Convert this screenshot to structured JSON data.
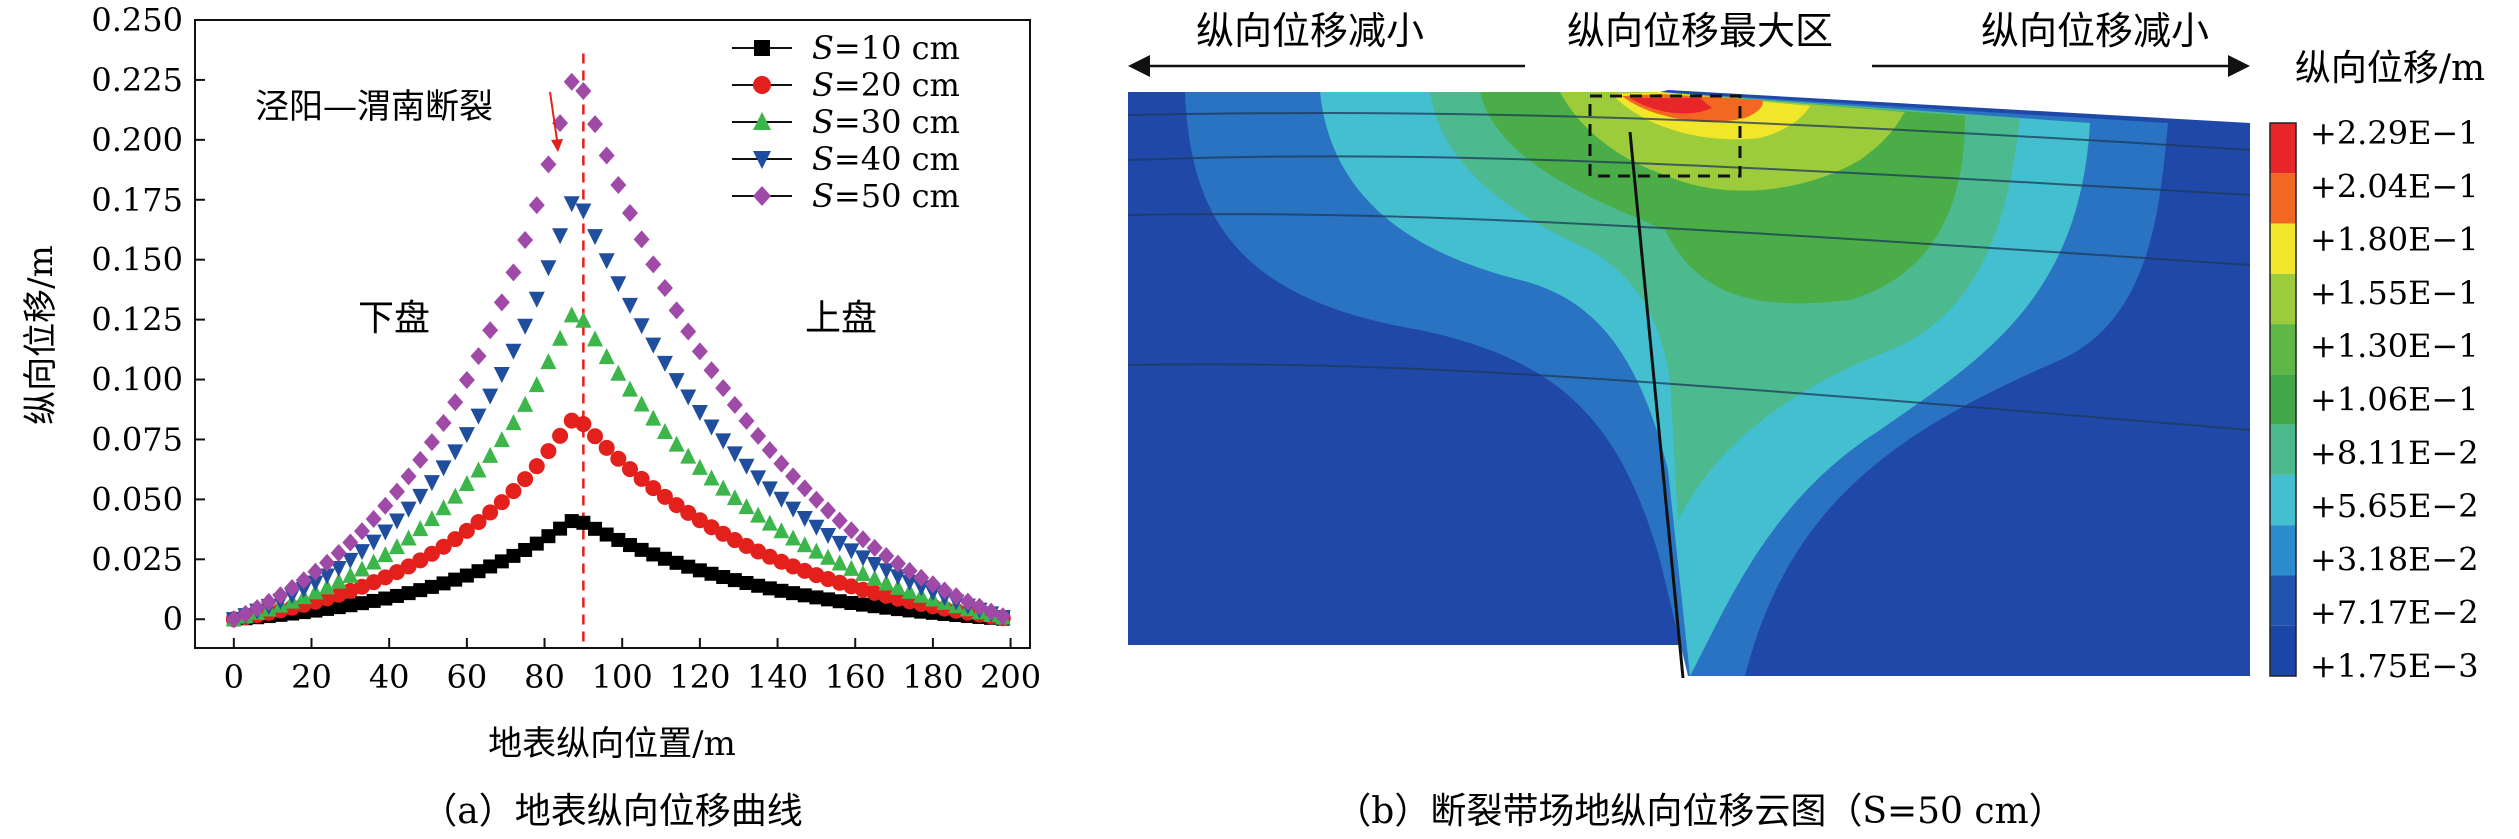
{
  "panel_a": {
    "caption": "（a）地表纵向位移曲线",
    "fault_label": "泾阳—渭南断裂",
    "footwall_label": "下盘",
    "hanging_label": "上盘"
  },
  "panel_b": {
    "caption": "（b）断裂带场地纵向位移云图（S=50 cm）",
    "left_label": "纵向位移减小",
    "center_label": "纵向位移最大区",
    "right_label": "纵向位移减小",
    "colorbar_title": "纵向位移/m",
    "colorbar_ticks": [
      "+2.29E−1",
      "+2.04E−1",
      "+1.80E−1",
      "+1.55E−1",
      "+1.30E−1",
      "+1.06E−1",
      "+8.11E−2",
      "+5.65E−2",
      "+3.18E−2",
      "+7.17E−2",
      "+1.75E−3"
    ],
    "colorbar_colors": [
      "#e8262a",
      "#f26722",
      "#f2e62a",
      "#9ccc3c",
      "#5fb845",
      "#42a84a",
      "#4cb98c",
      "#43bfcf",
      "#2a8ccc",
      "#2153b1",
      "#1b45a6"
    ]
  },
  "chart_data": {
    "type": "scatter",
    "xlabel": "地表纵向位置/m",
    "ylabel": "纵向位移/m",
    "xlim": [
      -10,
      205
    ],
    "ylim": [
      -0.012,
      0.25
    ],
    "xticks": [
      0,
      20,
      40,
      60,
      80,
      100,
      120,
      140,
      160,
      180,
      200
    ],
    "yticks": [
      0,
      0.025,
      0.05,
      0.075,
      0.1,
      0.125,
      0.15,
      0.175,
      0.2,
      0.225,
      0.25
    ],
    "ytick_labels": [
      "0",
      "0.025",
      "0.050",
      "0.075",
      "0.100",
      "0.125",
      "0.150",
      "0.175",
      "0.200",
      "0.225",
      "0.250"
    ],
    "fault_x": 90,
    "legend_position": "top-right",
    "series": [
      {
        "name": "=10 cm",
        "s_value": 10,
        "color": "#000000",
        "marker": "square",
        "peak_x": 88,
        "peak": 0.042
      },
      {
        "name": "=20 cm",
        "s_value": 20,
        "color": "#e3201b",
        "marker": "circle",
        "peak_x": 88,
        "peak": 0.085
      },
      {
        "name": "=30 cm",
        "s_value": 30,
        "color": "#3cb54a",
        "marker": "triangle-up",
        "peak_x": 88,
        "peak": 0.13
      },
      {
        "name": "=40 cm",
        "s_value": 40,
        "color": "#1f4e9e",
        "marker": "triangle-down",
        "peak_x": 88,
        "peak": 0.178
      },
      {
        "name": "=50 cm",
        "s_value": 50,
        "color": "#a04aa8",
        "marker": "diamond",
        "peak_x": 88,
        "peak": 0.23
      }
    ]
  }
}
